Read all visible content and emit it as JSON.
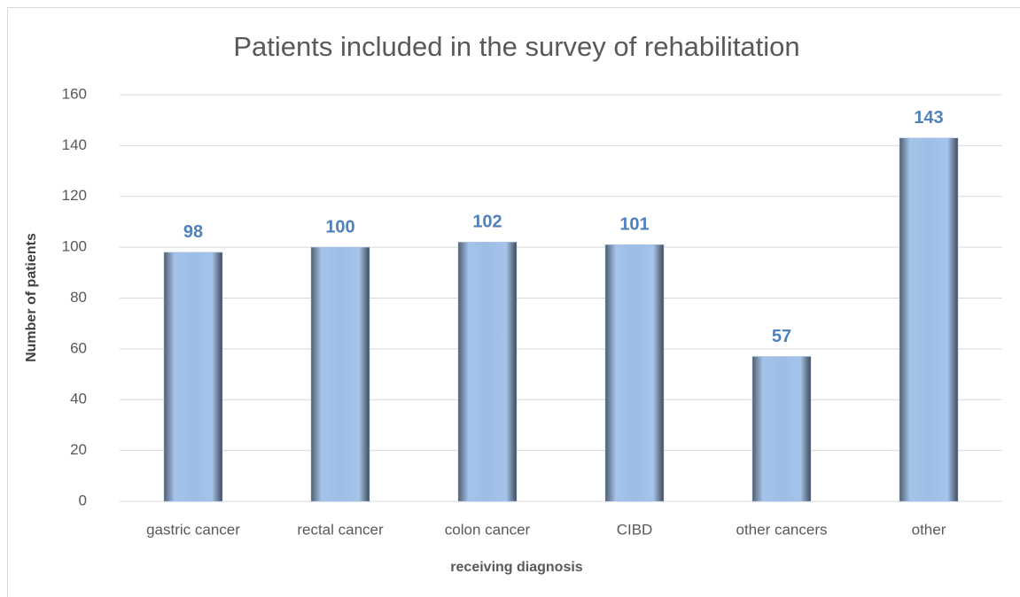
{
  "chart_data": {
    "type": "bar",
    "title": "Patients included in the survey of rehabilitation",
    "x_label": "receiving diagnosis",
    "y_label": "Number of patients",
    "categories": [
      "gastric cancer",
      "rectal cancer",
      "colon cancer",
      "CIBD",
      "other cancers",
      "other"
    ],
    "values": [
      98,
      100,
      102,
      101,
      57,
      143
    ],
    "color": "#9dbde6",
    "ylim": [
      0,
      160
    ],
    "yticks": [
      0,
      20,
      40,
      60,
      80,
      100,
      120,
      140,
      160
    ],
    "grid": true
  }
}
